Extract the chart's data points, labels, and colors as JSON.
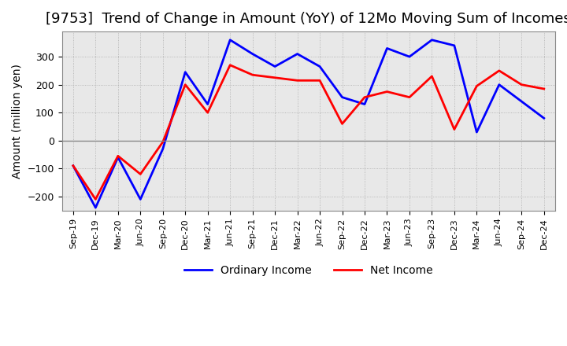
{
  "title": "[9753]  Trend of Change in Amount (YoY) of 12Mo Moving Sum of Incomes",
  "ylabel": "Amount (million yen)",
  "x_labels": [
    "Sep-19",
    "Dec-19",
    "Mar-20",
    "Jun-20",
    "Sep-20",
    "Dec-20",
    "Mar-21",
    "Jun-21",
    "Sep-21",
    "Dec-21",
    "Mar-22",
    "Jun-22",
    "Sep-22",
    "Dec-22",
    "Mar-23",
    "Jun-23",
    "Sep-23",
    "Dec-23",
    "Mar-24",
    "Jun-24",
    "Sep-24",
    "Dec-24"
  ],
  "ordinary_income": [
    -90,
    -240,
    -60,
    -210,
    -30,
    245,
    130,
    360,
    310,
    265,
    310,
    265,
    155,
    130,
    330,
    300,
    360,
    340,
    30,
    200,
    140,
    80
  ],
  "net_income": [
    -90,
    -210,
    -55,
    -120,
    -5,
    200,
    100,
    270,
    235,
    225,
    215,
    215,
    60,
    155,
    175,
    155,
    230,
    40,
    195,
    250,
    200,
    185
  ],
  "ordinary_color": "#0000ff",
  "net_color": "#ff0000",
  "ylim": [
    -250,
    390
  ],
  "yticks": [
    -200,
    -100,
    0,
    100,
    200,
    300
  ],
  "plot_bg_color": "#f0f0f0",
  "background_color": "#ffffff",
  "grid_color": "#aaaaaa",
  "title_fontsize": 13,
  "legend_labels": [
    "Ordinary Income",
    "Net Income"
  ],
  "linewidth": 2.0
}
